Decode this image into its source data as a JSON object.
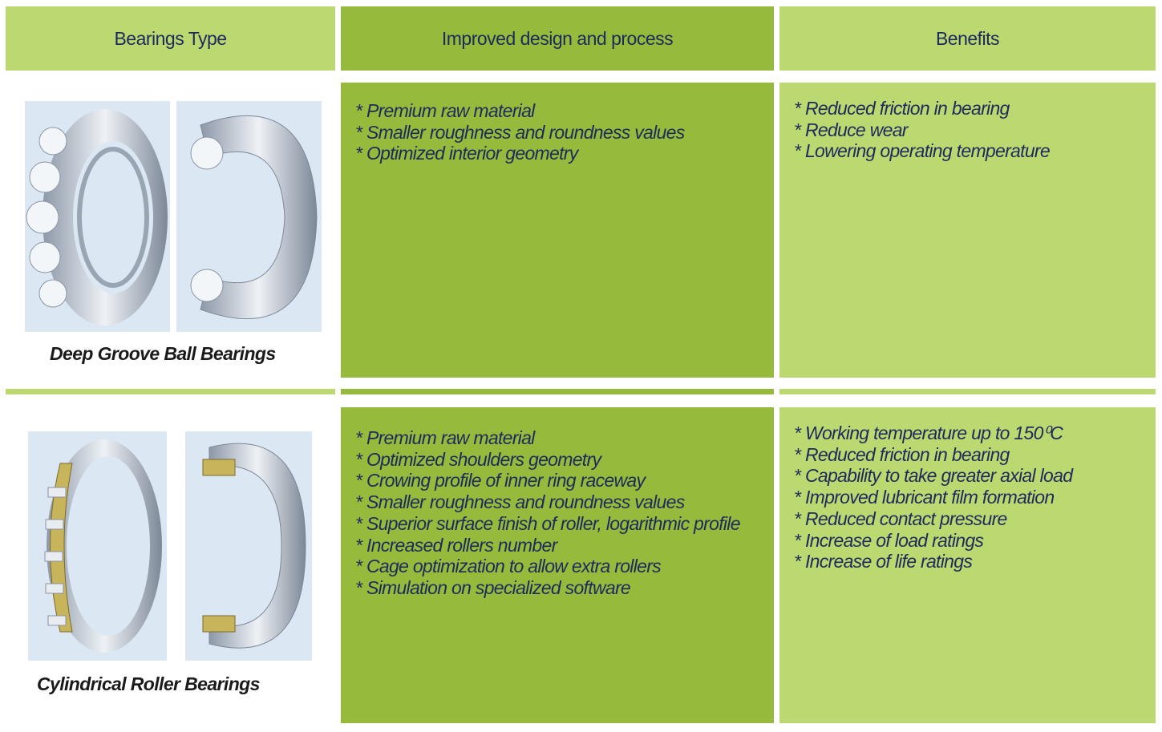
{
  "header": {
    "columns": [
      "Bearings Type",
      "Improved design and process",
      "Benefits"
    ]
  },
  "rows": [
    {
      "bearing": "Deep Groove Ball Bearings",
      "improvements": [
        "* Premium raw material",
        "* Smaller roughness and roundness values",
        "* Optimized interior geometry"
      ],
      "benefits": [
        "* Reduced friction in bearing",
        "* Reduce wear",
        "* Lowering operating temperature"
      ]
    },
    {
      "bearing": "Cylindrical Roller Bearings",
      "improvements": [
        "* Premium raw material",
        "* Optimized shoulders geometry",
        "* Crowing profile of inner ring raceway",
        "* Smaller roughness and roundness values",
        "* Superior surface finish of roller, logarithmic profile",
        "* Increased rollers number",
        "* Cage optimization to allow extra rollers",
        "* Simulation on specialized software"
      ],
      "benefits": [
        "* Working temperature up to 150⁰C",
        "* Reduced friction in bearing",
        "* Capability to take greater axial load",
        "* Improved lubricant film formation",
        "* Reduced contact pressure",
        "* Increase of load ratings",
        "* Increase of life ratings"
      ]
    }
  ]
}
